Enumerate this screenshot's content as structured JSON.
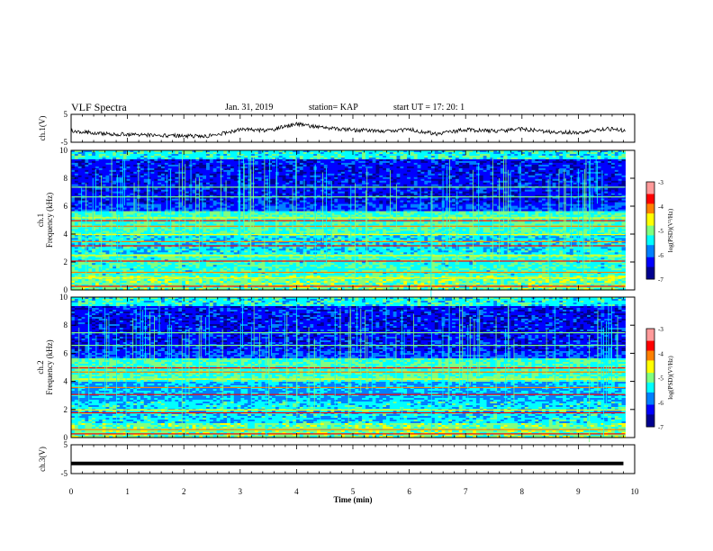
{
  "header": {
    "title": "VLF Spectra",
    "date": "Jan. 31, 2019",
    "station": "station= KAP",
    "start": "start  UT =  17: 20: 1"
  },
  "colors": {
    "spectrogram_scale": [
      "#000090",
      "#0000ff",
      "#0080ff",
      "#00ffff",
      "#80ff80",
      "#ffff00",
      "#ff8000",
      "#ff0000",
      "#800000",
      "#ff9a9a",
      "#ffffff"
    ]
  },
  "chart_data": [
    {
      "type": "line",
      "panel": "ch1-waveform",
      "ylabel": "ch.1(V)",
      "yticks": [
        "5",
        "-5"
      ],
      "ylim": [
        -5,
        5
      ],
      "x": [
        0,
        0.5,
        1,
        1.5,
        2,
        2.5,
        3,
        3.5,
        4,
        4.5,
        5,
        5.5,
        6,
        6.5,
        7,
        7.5,
        8,
        8.5,
        9,
        9.5,
        9.8
      ],
      "y": [
        -1,
        -1.8,
        -2.3,
        -2.4,
        -2.8,
        -2.7,
        -0.4,
        -0.8,
        1.5,
        0.2,
        -0.6,
        -0.9,
        -0.5,
        -2,
        -0.5,
        -1,
        -0.3,
        -1.3,
        -1.5,
        -0.2,
        -0.7
      ]
    },
    {
      "type": "heatmap",
      "panel": "ch1-spectrogram",
      "ylabel": "Frequency (kHz)",
      "channel_label": "ch.1",
      "yticks": [
        "0",
        "2",
        "4",
        "6",
        "8",
        "10"
      ],
      "ylim": [
        0,
        10
      ],
      "colorbar": {
        "label": "log(PSD)(V²/Hz)",
        "ticks": [
          "-3",
          "-4",
          "-5",
          "-6",
          "-7"
        ],
        "range": [
          -7,
          -3
        ]
      }
    },
    {
      "type": "heatmap",
      "panel": "ch2-spectrogram",
      "ylabel": "Frequency (kHz)",
      "channel_label": "ch.2",
      "yticks": [
        "0",
        "2",
        "4",
        "6",
        "8",
        "10"
      ],
      "ylim": [
        0,
        10
      ],
      "colorbar": {
        "label": "log(PSD)(V²/Hz)",
        "ticks": [
          "-3",
          "-4",
          "-5",
          "-6",
          "-7"
        ],
        "range": [
          -7,
          -3
        ]
      }
    },
    {
      "type": "line",
      "panel": "ch3-waveform",
      "ylabel": "ch.3(V)",
      "yticks": [
        "5",
        "-5"
      ],
      "ylim": [
        -5,
        5
      ],
      "x": [
        0,
        9.8
      ],
      "y": [
        -1.5,
        -1.5
      ]
    }
  ],
  "xaxis": {
    "label": "Time  (min)",
    "ticks": [
      "0",
      "1",
      "2",
      "3",
      "4",
      "5",
      "6",
      "7",
      "8",
      "9",
      "10"
    ],
    "xlim": [
      0,
      10
    ]
  }
}
